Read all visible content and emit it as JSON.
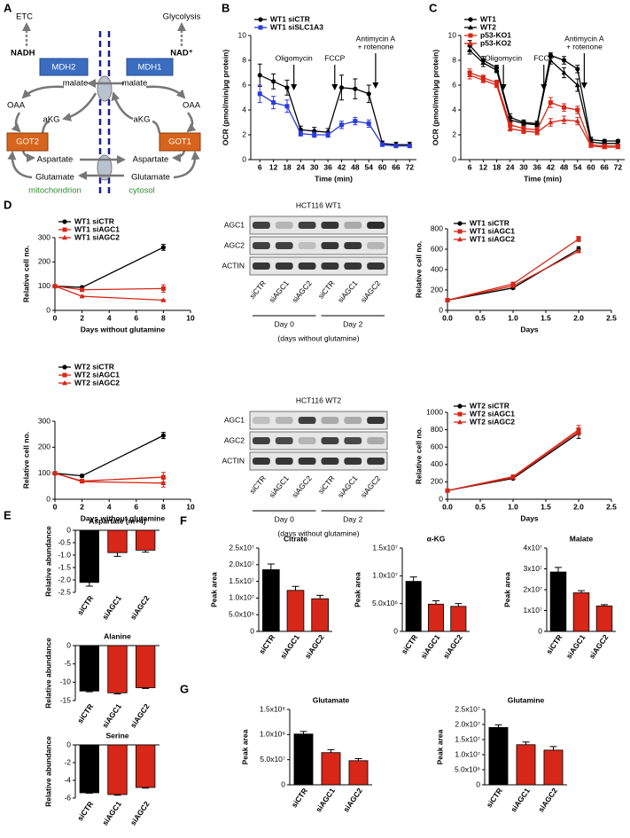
{
  "panel_labels": [
    "A",
    "B",
    "C",
    "D",
    "E",
    "F",
    "G"
  ],
  "diagram": {
    "labels": [
      "ETC",
      "Glycolysis",
      "NADH",
      "NAD⁺",
      "MDH2",
      "MDH1",
      "malate",
      "malate",
      "OAA",
      "OAA",
      "aKG",
      "aKG",
      "GOT2",
      "GOT1",
      "Aspartate",
      "Aspartate",
      "Glutamate",
      "Glutamate",
      "mitochondrion",
      "cytosol"
    ]
  },
  "blots": [
    {
      "title": "HCT116 WT1",
      "rows": [
        "AGC1",
        "AGC2",
        "ACTIN"
      ],
      "lanes": [
        "siCTR",
        "siAGC1",
        "siAGC2",
        "siCTR",
        "siAGC1",
        "siAGC2"
      ],
      "groups": [
        "Day 0",
        "Day 2"
      ],
      "caption": "(days without glutamine)"
    },
    {
      "title": "HCT116 WT2",
      "rows": [
        "AGC1",
        "AGC2",
        "ACTIN"
      ],
      "lanes": [
        "siCTR",
        "siAGC1",
        "siAGC2",
        "siCTR",
        "siAGC1",
        "siAGC2"
      ],
      "groups": [
        "Day 0",
        "Day 2"
      ],
      "caption": "(days without glutamine)"
    }
  ],
  "chart_data": [
    {
      "type": "line",
      "xlabel": "Time (min)",
      "ylabel": "OCR (pmol/min/µg protein)",
      "legend": "upper left",
      "x": [
        6,
        12,
        18,
        24,
        30,
        36,
        42,
        48,
        54,
        60,
        66,
        72
      ],
      "xlim": [
        2,
        75
      ],
      "xticks": [
        6,
        12,
        18,
        24,
        30,
        36,
        42,
        48,
        54,
        60,
        66,
        72
      ],
      "ylim": [
        0,
        10
      ],
      "yticks": [
        0,
        2,
        4,
        6,
        8,
        10
      ],
      "annotations": [
        "Oligomycin",
        "FCCP",
        [
          "Antimycin A",
          "+ rotenone"
        ]
      ],
      "series": [
        {
          "name": "WT1 siCTR",
          "color": "#000000",
          "marker": "circle",
          "values": [
            6.8,
            6.3,
            5.8,
            2.4,
            2.3,
            2.2,
            5.8,
            5.7,
            5.3,
            1.3,
            1.2,
            1.2
          ],
          "errors": [
            0.9,
            0.6,
            0.6,
            0.3,
            0.3,
            0.3,
            1.0,
            0.8,
            0.7,
            0.2,
            0.2,
            0.2
          ]
        },
        {
          "name": "WT1 siSLC1A3",
          "color": "#2b3bdc",
          "marker": "square",
          "values": [
            5.3,
            4.6,
            4.3,
            2.1,
            2.0,
            2.0,
            2.8,
            3.1,
            2.9,
            1.2,
            1.1,
            1.1
          ],
          "errors": [
            0.7,
            0.5,
            0.5,
            0.2,
            0.2,
            0.2,
            0.3,
            0.3,
            0.3,
            0.1,
            0.1,
            0.1
          ]
        }
      ]
    },
    {
      "type": "line",
      "xlabel": "Time (min)",
      "ylabel": "OCR (pmol/min/µg protein)",
      "legend": "upper left",
      "x": [
        6,
        12,
        18,
        24,
        30,
        36,
        42,
        48,
        54,
        60,
        66,
        72
      ],
      "xlim": [
        2,
        75
      ],
      "xticks": [
        6,
        12,
        18,
        24,
        30,
        36,
        42,
        48,
        54,
        60,
        66,
        72
      ],
      "ylim": [
        0,
        10
      ],
      "yticks": [
        0,
        2,
        4,
        6,
        8,
        10
      ],
      "annotations": [
        "Oligomycin",
        "FCCP",
        [
          "Antimycin A",
          "+ rotenone"
        ]
      ],
      "series": [
        {
          "name": "WT1",
          "color": "#000000",
          "marker": "circle",
          "values": [
            9.2,
            8.0,
            7.4,
            3.4,
            3.0,
            2.9,
            8.4,
            8.0,
            7.3,
            1.6,
            1.5,
            1.5
          ],
          "errors": [
            0.4,
            0.3,
            0.2,
            0.3,
            0.2,
            0.2,
            0.2,
            0.3,
            0.3,
            0.2,
            0.1,
            0.1
          ]
        },
        {
          "name": "WT2",
          "color": "#000000",
          "marker": "triangle",
          "values": [
            8.8,
            7.8,
            7.2,
            3.2,
            2.9,
            2.8,
            8.0,
            7.0,
            6.0,
            1.4,
            1.3,
            1.3
          ],
          "errors": [
            0.3,
            0.3,
            0.2,
            0.2,
            0.2,
            0.2,
            0.3,
            0.4,
            0.5,
            0.1,
            0.1,
            0.1
          ]
        },
        {
          "name": "p53-KO1",
          "color": "#d62718",
          "marker": "square",
          "values": [
            7.0,
            6.6,
            6.2,
            2.8,
            2.5,
            2.4,
            4.6,
            4.2,
            4.0,
            1.2,
            1.1,
            1.1
          ],
          "errors": [
            0.3,
            0.2,
            0.2,
            0.2,
            0.2,
            0.2,
            0.4,
            0.3,
            0.3,
            0.1,
            0.1,
            0.1
          ]
        },
        {
          "name": "p53-KO2",
          "color": "#d62718",
          "marker": "triangle",
          "values": [
            6.8,
            6.4,
            6.0,
            2.5,
            2.3,
            2.2,
            3.0,
            3.2,
            3.1,
            1.1,
            1.0,
            1.0
          ],
          "errors": [
            0.3,
            0.2,
            0.2,
            0.2,
            0.2,
            0.2,
            0.3,
            0.3,
            0.3,
            0.1,
            0.1,
            0.1
          ]
        }
      ]
    },
    {
      "type": "line",
      "xlabel": "Days without glutamine",
      "ylabel": "Relative cell no.",
      "legend": "upper left",
      "x": [
        0,
        2,
        8
      ],
      "xlim": [
        0,
        10
      ],
      "xticks": [
        0,
        2,
        4,
        6,
        8,
        10
      ],
      "ylim": [
        0,
        300
      ],
      "yticks": [
        0,
        100,
        200,
        300
      ],
      "series": [
        {
          "name": "WT1 siCTR",
          "color": "#000000",
          "marker": "circle",
          "values": [
            100,
            95,
            260
          ],
          "errors": [
            0,
            4,
            12
          ]
        },
        {
          "name": "WT1 siAGC1",
          "color": "#d62718",
          "marker": "square",
          "values": [
            100,
            85,
            90
          ],
          "errors": [
            0,
            3,
            15
          ]
        },
        {
          "name": "WT1 siAGC2",
          "color": "#d62718",
          "marker": "triangle",
          "values": [
            100,
            58,
            42
          ],
          "errors": [
            0,
            3,
            3
          ]
        }
      ]
    },
    {
      "type": "line",
      "xlabel": "Days",
      "ylabel": "Relative cell no.",
      "legend": "upper left",
      "x": [
        0,
        1,
        2
      ],
      "xlim": [
        0,
        2.5
      ],
      "xticks": [
        {
          "value": 0,
          "label": "0.0"
        },
        0.5,
        {
          "value": 1,
          "label": "1.0"
        },
        1.5,
        {
          "value": 2,
          "label": "2.0"
        },
        2.5
      ],
      "ylim": [
        0,
        800
      ],
      "yticks": [
        0,
        200,
        400,
        600,
        800
      ],
      "series": [
        {
          "name": "WT1 siCTR",
          "color": "#000000",
          "marker": "circle",
          "values": [
            100,
            220,
            600
          ],
          "errors": [
            0,
            10,
            25
          ]
        },
        {
          "name": "WT1 siAGC1",
          "color": "#d62718",
          "marker": "square",
          "values": [
            100,
            260,
            700
          ],
          "errors": [
            0,
            10,
            25
          ]
        },
        {
          "name": "WT1 siAGC2",
          "color": "#d62718",
          "marker": "triangle",
          "values": [
            100,
            240,
            580
          ],
          "errors": [
            0,
            8,
            15
          ]
        }
      ]
    },
    {
      "type": "line",
      "xlabel": "Days without glutamine",
      "ylabel": "Relative cell no.",
      "legend": "upper left",
      "x": [
        0,
        2,
        8
      ],
      "xlim": [
        0,
        10
      ],
      "xticks": [
        0,
        2,
        4,
        6,
        8,
        10
      ],
      "ylim": [
        0,
        300
      ],
      "yticks": [
        0,
        100,
        200,
        300
      ],
      "series": [
        {
          "name": "WT2 siCTR",
          "color": "#000000",
          "marker": "circle",
          "values": [
            100,
            90,
            245
          ],
          "errors": [
            0,
            5,
            12
          ]
        },
        {
          "name": "WT2 siAGC1",
          "color": "#d62718",
          "marker": "square",
          "values": [
            100,
            70,
            85
          ],
          "errors": [
            0,
            4,
            18
          ]
        },
        {
          "name": "WT2 siAGC2",
          "color": "#d62718",
          "marker": "triangle",
          "values": [
            100,
            68,
            62
          ],
          "errors": [
            0,
            3,
            15
          ]
        }
      ]
    },
    {
      "type": "line",
      "xlabel": "Days",
      "ylabel": "Relative cell no.",
      "legend": "upper left",
      "x": [
        0,
        1,
        2
      ],
      "xlim": [
        0,
        2.5
      ],
      "xticks": [
        {
          "value": 0,
          "label": "0.0"
        },
        0.5,
        {
          "value": 1,
          "label": "1.0"
        },
        1.5,
        {
          "value": 2,
          "label": "2.0"
        },
        2.5
      ],
      "ylim": [
        0,
        1000
      ],
      "yticks": [
        0,
        200,
        400,
        600,
        800,
        1000
      ],
      "series": [
        {
          "name": "WT2 siCTR",
          "color": "#000000",
          "marker": "circle",
          "values": [
            100,
            240,
            760
          ],
          "errors": [
            0,
            10,
            60
          ]
        },
        {
          "name": "WT2 siAGC1",
          "color": "#d62718",
          "marker": "square",
          "values": [
            100,
            260,
            800
          ],
          "errors": [
            0,
            10,
            50
          ]
        },
        {
          "name": "WT2 siAGC2",
          "color": "#d62718",
          "marker": "triangle",
          "values": [
            100,
            250,
            780
          ],
          "errors": [
            0,
            10,
            40
          ]
        }
      ]
    },
    {
      "type": "bar",
      "title": "Aspartate (m+4)",
      "ylabel": "Relative abundance",
      "categories": [
        "siCTR",
        "siAGC1",
        "siAGC2"
      ],
      "values": [
        -2.1,
        -0.9,
        -0.8
      ],
      "errors": [
        0.15,
        0.15,
        0.08
      ],
      "colors": [
        "#000000",
        "#d62718",
        "#d62718"
      ],
      "ylim": [
        -2.5,
        0
      ],
      "yticks": [
        0,
        -0.5,
        {
          "value": -1,
          "label": "-1.0"
        },
        -1.5,
        {
          "value": -2,
          "label": "-2.0"
        },
        -2.5
      ]
    },
    {
      "type": "bar",
      "title": "Alanine",
      "ylabel": "Relative abundance",
      "categories": [
        "siCTR",
        "siAGC1",
        "siAGC2"
      ],
      "values": [
        -12.4,
        -12.9,
        -11.5
      ],
      "errors": [
        0.2,
        0.3,
        0.2
      ],
      "colors": [
        "#000000",
        "#d62718",
        "#d62718"
      ],
      "ylim": [
        -15,
        0
      ],
      "yticks": [
        0,
        -5,
        -10,
        -15
      ]
    },
    {
      "type": "bar",
      "title": "Serine",
      "ylabel": "Relative abundance",
      "categories": [
        "siCTR",
        "siAGC1",
        "siAGC2"
      ],
      "values": [
        -5.4,
        -5.6,
        -4.8
      ],
      "errors": [
        0.05,
        0.08,
        0.08
      ],
      "colors": [
        "#000000",
        "#d62718",
        "#d62718"
      ],
      "ylim": [
        -6,
        0
      ],
      "yticks": [
        0,
        -2,
        -4,
        -6
      ]
    },
    {
      "type": "bar",
      "title": "Citrate",
      "ylabel": "Peak area",
      "categories": [
        "siCTR",
        "siAGC1",
        "siAGC2"
      ],
      "values": [
        18500000,
        12300000,
        9800000
      ],
      "errors": [
        1700000,
        1200000,
        1000000
      ],
      "colors": [
        "#000000",
        "#d62718",
        "#d62718"
      ],
      "ylim": [
        0,
        25000000
      ],
      "yticks": [
        0,
        {
          "value": 5000000,
          "label": "5.0x10⁶"
        },
        {
          "value": 10000000,
          "label": "1.0x10⁷"
        },
        {
          "value": 15000000,
          "label": "1.5x10⁷"
        },
        {
          "value": 20000000,
          "label": "2.0x10⁷"
        },
        {
          "value": 25000000,
          "label": "2.5x10⁷"
        }
      ]
    },
    {
      "type": "bar",
      "title": "α-KG",
      "ylabel": "Peak area",
      "categories": [
        "siCTR",
        "siAGC1",
        "siAGC2"
      ],
      "values": [
        9000000,
        4900000,
        4500000
      ],
      "errors": [
        800000,
        600000,
        500000
      ],
      "colors": [
        "#000000",
        "#d62718",
        "#d62718"
      ],
      "ylim": [
        0,
        15000000
      ],
      "yticks": [
        0,
        {
          "value": 5000000,
          "label": "5.0x10⁶"
        },
        {
          "value": 10000000,
          "label": "1.0x10⁷"
        },
        {
          "value": 15000000,
          "label": "1.5x10⁷"
        }
      ]
    },
    {
      "type": "bar",
      "title": "Malate",
      "ylabel": "Peak area",
      "categories": [
        "siCTR",
        "siAGC1",
        "siAGC2"
      ],
      "values": [
        28500000,
        18500000,
        12200000
      ],
      "errors": [
        2200000,
        1000000,
        600000
      ],
      "colors": [
        "#000000",
        "#d62718",
        "#d62718"
      ],
      "ylim": [
        0,
        40000000
      ],
      "yticks": [
        0,
        {
          "value": 10000000,
          "label": "1x10⁷"
        },
        {
          "value": 20000000,
          "label": "2x10⁷"
        },
        {
          "value": 30000000,
          "label": "3x10⁷"
        },
        {
          "value": 40000000,
          "label": "4x10⁷"
        }
      ]
    },
    {
      "type": "bar",
      "title": "Glutamate",
      "ylabel": "Peak area",
      "categories": [
        "siCTR",
        "siAGC1",
        "siAGC2"
      ],
      "values": [
        101000000,
        64000000,
        48000000
      ],
      "errors": [
        5000000,
        6000000,
        4000000
      ],
      "colors": [
        "#000000",
        "#d62718",
        "#d62718"
      ],
      "ylim": [
        0,
        150000000
      ],
      "yticks": [
        0,
        {
          "value": 50000000,
          "label": "5.0x10⁷"
        },
        {
          "value": 100000000,
          "label": "1.0x10⁸"
        },
        {
          "value": 150000000,
          "label": "1.5x10⁸"
        }
      ]
    },
    {
      "type": "bar",
      "title": "Glutamine",
      "ylabel": "Peak area",
      "categories": [
        "siCTR",
        "siAGC1",
        "siAGC2"
      ],
      "values": [
        19000000,
        13300000,
        11500000
      ],
      "errors": [
        900000,
        900000,
        1200000
      ],
      "colors": [
        "#000000",
        "#d62718",
        "#d62718"
      ],
      "ylim": [
        0,
        25000000
      ],
      "yticks": [
        0,
        {
          "value": 5000000,
          "label": "5.0x10⁶"
        },
        {
          "value": 10000000,
          "label": "1.0x10⁷"
        },
        {
          "value": 15000000,
          "label": "1.5x10⁷"
        },
        {
          "value": 20000000,
          "label": "2.0x10⁷"
        },
        {
          "value": 25000000,
          "label": "2.5x10⁷"
        }
      ]
    }
  ]
}
